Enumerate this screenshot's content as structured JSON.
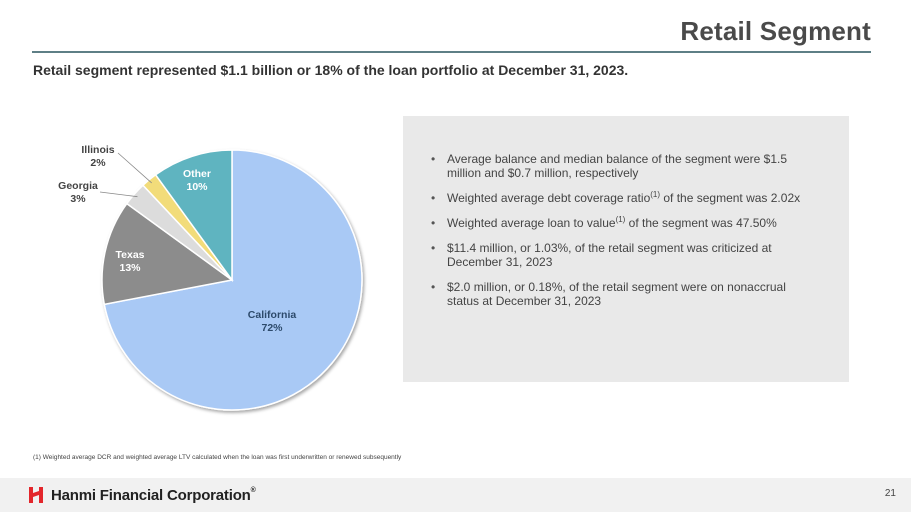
{
  "header": {
    "title": "Retail Segment",
    "subtitle": "Retail segment represented $1.1 billion or 18% of the loan portfolio at December 31, 2023."
  },
  "chart_data": {
    "type": "pie",
    "title": "",
    "slices": [
      {
        "label": "California",
        "value": 72,
        "display": "72%",
        "color": "#a9c9f5"
      },
      {
        "label": "Texas",
        "value": 13,
        "display": "13%",
        "color": "#8c8c8c"
      },
      {
        "label": "Georgia",
        "value": 3,
        "display": "3%",
        "color": "#dcdcdc"
      },
      {
        "label": "Illinois",
        "value": 2,
        "display": "2%",
        "color": "#f2dc7a"
      },
      {
        "label": "Other",
        "value": 10,
        "display": "10%",
        "color": "#5fb4c0"
      }
    ]
  },
  "bullets": [
    {
      "parts": [
        "Average balance and median balance of the segment were $1.5 million and $0.7 million, respectively"
      ]
    },
    {
      "parts": [
        "Weighted average debt coverage ratio",
        "(1)",
        " of the segment was 2.02x"
      ]
    },
    {
      "parts": [
        "Weighted average loan to value",
        "(1)",
        " of the segment was 47.50%"
      ]
    },
    {
      "parts": [
        "$11.4 million, or 1.03%, of the retail segment was criticized at December 31, 2023"
      ]
    },
    {
      "parts": [
        "$2.0 million, or 0.18%, of the retail segment were on nonaccrual status at December 31, 2023"
      ]
    }
  ],
  "footnote": "(1)    Weighted average DCR and weighted average LTV calculated when the loan was first underwritten or renewed subsequently",
  "footer": {
    "company": "Hanmi Financial Corporation",
    "trademark": "®",
    "page_number": "21",
    "logo_color": "#e3262b"
  }
}
